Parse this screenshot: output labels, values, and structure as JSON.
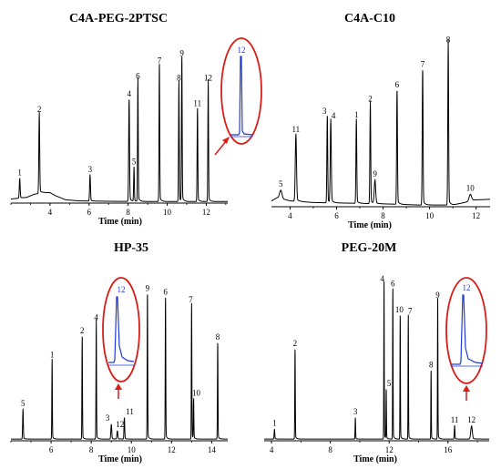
{
  "figure": {
    "colors": {
      "trace": "#000000",
      "inset_trace": "#1f3bd6",
      "callout": "#d91e18",
      "background": "#ffffff"
    }
  },
  "chart_data": [
    {
      "id": "c4a-peg",
      "type": "line",
      "title": "C4A-PEG-2PTSC",
      "xlabel": "Time (min)",
      "ylabel": "",
      "xlim": [
        2.0,
        13.1
      ],
      "ylim": [
        0,
        100
      ],
      "xticks": [
        4,
        6,
        8,
        10,
        12
      ],
      "baseline": [
        [
          2.0,
          2
        ],
        [
          2.8,
          3
        ],
        [
          3.2,
          5
        ],
        [
          3.6,
          6
        ],
        [
          4.0,
          6
        ],
        [
          4.3,
          4
        ],
        [
          4.8,
          1.5
        ],
        [
          5.5,
          0.8
        ],
        [
          7.5,
          0.5
        ],
        [
          10.0,
          0.4
        ],
        [
          13.1,
          0.4
        ]
      ],
      "peaks": [
        {
          "label": "1",
          "rt": 2.45,
          "height": 12,
          "width": 0.05
        },
        {
          "label": "2",
          "rt": 3.45,
          "height": 49,
          "width": 0.05
        },
        {
          "label": "3",
          "rt": 6.05,
          "height": 16,
          "width": 0.05
        },
        {
          "label": "4",
          "rt": 8.05,
          "height": 64,
          "width": 0.05
        },
        {
          "label": "5",
          "rt": 8.3,
          "height": 21,
          "width": 0.04
        },
        {
          "label": "6",
          "rt": 8.5,
          "height": 75,
          "width": 0.04
        },
        {
          "label": "7",
          "rt": 9.6,
          "height": 85,
          "width": 0.04
        },
        {
          "label": "8",
          "rt": 10.6,
          "height": 74,
          "width": 0.04
        },
        {
          "label": "9",
          "rt": 10.75,
          "height": 89,
          "width": 0.04
        },
        {
          "label": "11",
          "rt": 11.55,
          "height": 58,
          "width": 0.04
        },
        {
          "label": "12",
          "rt": 12.1,
          "height": 74,
          "width": 0.04
        }
      ],
      "inset": {
        "label": "12"
      }
    },
    {
      "id": "c4a-c10",
      "type": "line",
      "title": "C4A-C10",
      "xlabel": "Time (min)",
      "ylabel": "",
      "xlim": [
        3.2,
        12.6
      ],
      "ylim": [
        0,
        100
      ],
      "xticks": [
        4,
        6,
        8,
        10,
        12
      ],
      "baseline": [
        [
          3.2,
          3
        ],
        [
          3.45,
          5
        ],
        [
          3.7,
          4
        ],
        [
          4.0,
          3
        ],
        [
          5.0,
          2
        ],
        [
          7.0,
          1.5
        ],
        [
          8.5,
          1
        ],
        [
          9.5,
          0.5
        ],
        [
          11.0,
          0.5
        ],
        [
          11.5,
          2
        ],
        [
          11.9,
          3.5
        ],
        [
          12.6,
          4
        ]
      ],
      "peaks": [
        {
          "label": "5",
          "rt": 3.6,
          "height": 5,
          "width": 0.12
        },
        {
          "label": "11",
          "rt": 4.25,
          "height": 40,
          "width": 0.06
        },
        {
          "label": "3",
          "rt": 5.6,
          "height": 52,
          "width": 0.04
        },
        {
          "label": "4",
          "rt": 5.75,
          "height": 49,
          "width": 0.05
        },
        {
          "label": "1",
          "rt": 6.85,
          "height": 50,
          "width": 0.04
        },
        {
          "label": "2",
          "rt": 7.45,
          "height": 60,
          "width": 0.04
        },
        {
          "label": "9",
          "rt": 7.65,
          "height": 14,
          "width": 0.07
        },
        {
          "label": "6",
          "rt": 8.6,
          "height": 69,
          "width": 0.04
        },
        {
          "label": "7",
          "rt": 9.7,
          "height": 82,
          "width": 0.04
        },
        {
          "label": "8",
          "rt": 10.8,
          "height": 97,
          "width": 0.04
        },
        {
          "label": "10",
          "rt": 11.75,
          "height": 4,
          "width": 0.12
        }
      ]
    },
    {
      "id": "hp35",
      "type": "line",
      "title": "HP-35",
      "xlabel": "Time (min)",
      "ylabel": "",
      "xlim": [
        4.0,
        14.8
      ],
      "ylim": [
        0,
        100
      ],
      "xticks": [
        6,
        8,
        10,
        12,
        14
      ],
      "baseline": [
        [
          4.0,
          0.5
        ],
        [
          14.8,
          0.5
        ]
      ],
      "peaks": [
        {
          "label": "5",
          "rt": 4.6,
          "height": 18,
          "width": 0.04
        },
        {
          "label": "1",
          "rt": 6.05,
          "height": 48,
          "width": 0.03
        },
        {
          "label": "2",
          "rt": 7.55,
          "height": 63,
          "width": 0.03
        },
        {
          "label": "4",
          "rt": 8.25,
          "height": 71,
          "width": 0.03
        },
        {
          "label": "3",
          "rt": 9.0,
          "height": 9,
          "width": 0.05
        },
        {
          "label": "12",
          "rt": 9.3,
          "height": 5,
          "width": 0.05
        },
        {
          "label": "11",
          "rt": 9.65,
          "height": 13,
          "width": 0.04
        },
        {
          "label": "9",
          "rt": 10.8,
          "height": 89,
          "width": 0.03
        },
        {
          "label": "6",
          "rt": 11.7,
          "height": 87,
          "width": 0.03
        },
        {
          "label": "7",
          "rt": 13.0,
          "height": 82,
          "width": 0.03
        },
        {
          "label": "10",
          "rt": 13.1,
          "height": 24,
          "width": 0.03
        },
        {
          "label": "8",
          "rt": 14.3,
          "height": 59,
          "width": 0.03
        }
      ],
      "inset": {
        "label": "12"
      }
    },
    {
      "id": "peg20m",
      "type": "line",
      "title": "PEG-20M",
      "xlabel": "Time (min)",
      "ylabel": "",
      "xlim": [
        3.5,
        18.8
      ],
      "ylim": [
        0,
        100
      ],
      "xticks": [
        4,
        8,
        12,
        16
      ],
      "baseline": [
        [
          3.5,
          0.5
        ],
        [
          18.8,
          0.5
        ]
      ],
      "peaks": [
        {
          "label": "1",
          "rt": 4.2,
          "height": 6,
          "width": 0.05
        },
        {
          "label": "2",
          "rt": 5.6,
          "height": 55,
          "width": 0.04
        },
        {
          "label": "3",
          "rt": 9.7,
          "height": 13,
          "width": 0.04
        },
        {
          "label": "4",
          "rt": 11.65,
          "height": 95,
          "width": 0.035
        },
        {
          "label": "5",
          "rt": 11.8,
          "height": 30,
          "width": 0.035
        },
        {
          "label": "6",
          "rt": 12.25,
          "height": 92,
          "width": 0.035
        },
        {
          "label": "10",
          "rt": 12.75,
          "height": 76,
          "width": 0.035
        },
        {
          "label": "7",
          "rt": 13.3,
          "height": 75,
          "width": 0.035
        },
        {
          "label": "8",
          "rt": 14.85,
          "height": 42,
          "width": 0.035
        },
        {
          "label": "9",
          "rt": 15.3,
          "height": 85,
          "width": 0.035
        },
        {
          "label": "11",
          "rt": 16.45,
          "height": 8,
          "width": 0.05
        },
        {
          "label": "12",
          "rt": 17.6,
          "height": 8,
          "width": 0.12
        }
      ],
      "inset": {
        "label": "12"
      }
    }
  ]
}
